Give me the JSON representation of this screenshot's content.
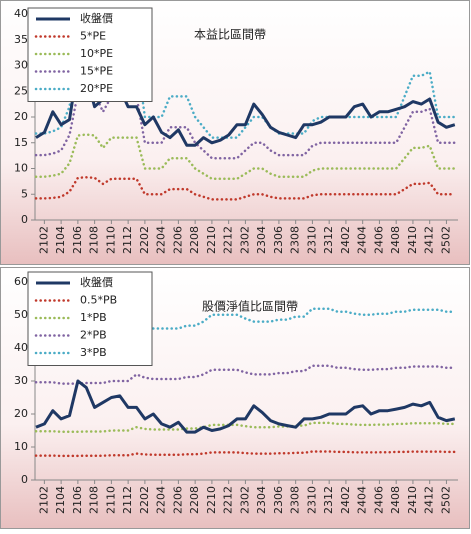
{
  "chart_data": [
    {
      "type": "line",
      "title": "本益比區間帶",
      "categories": [
        null,
        "2102",
        null,
        "2104",
        null,
        "2106",
        null,
        "2108",
        null,
        "2110",
        null,
        "2112",
        null,
        "2202",
        null,
        "2204",
        null,
        "2206",
        null,
        "2208",
        null,
        "2210",
        null,
        "2212",
        null,
        "2302",
        null,
        "2304",
        null,
        "2306",
        null,
        "2308",
        null,
        "2310",
        null,
        "2312",
        null,
        "2402",
        null,
        "2404",
        null,
        "2406",
        null,
        "2408",
        null,
        "2410",
        null,
        "2412",
        null,
        "2502",
        null
      ],
      "series": [
        {
          "name": "收盤價",
          "color": "#1f3864",
          "values": [
            16,
            17,
            21,
            18.5,
            19.5,
            30,
            28,
            22,
            23.5,
            25,
            25.5,
            22,
            22,
            18.5,
            20,
            17,
            16,
            17.5,
            14.5,
            14.5,
            16,
            15,
            15.5,
            16.5,
            18.5,
            18.5,
            22.5,
            20.5,
            18,
            17,
            16.5,
            16,
            18.5,
            18.5,
            19,
            20,
            20,
            20,
            22,
            22.5,
            20,
            21,
            21,
            21.5,
            22,
            23,
            22.5,
            23.5,
            19,
            18,
            18.5
          ]
        },
        {
          "name": "5*PE",
          "color": "#c0392b",
          "values": [
            4.2,
            4.2,
            4.3,
            4.5,
            5.5,
            8.2,
            8.3,
            8.2,
            7,
            8,
            8,
            8,
            8,
            5,
            5,
            5,
            6,
            6,
            6,
            5,
            4.5,
            4,
            4,
            4,
            4,
            4.5,
            5,
            5,
            4.5,
            4.2,
            4.2,
            4.2,
            4.2,
            4.8,
            5,
            5,
            5,
            5,
            5,
            5,
            5,
            5,
            5,
            5,
            6,
            7,
            7,
            7.2,
            5,
            5,
            5
          ]
        },
        {
          "name": "10*PE",
          "color": "#9bbb59",
          "values": [
            8.4,
            8.4,
            8.6,
            9,
            11,
            16.4,
            16.6,
            16.4,
            14,
            16,
            16,
            16,
            16,
            10,
            10,
            10,
            12,
            12,
            12,
            10,
            9,
            8,
            8,
            8,
            8,
            9,
            10,
            10,
            9,
            8.4,
            8.4,
            8.4,
            8.4,
            9.6,
            10,
            10,
            10,
            10,
            10,
            10,
            10,
            10,
            10,
            10,
            12,
            14,
            14,
            14.4,
            10,
            10,
            10
          ]
        },
        {
          "name": "15*PE",
          "color": "#8064a2",
          "values": [
            12.6,
            12.6,
            12.9,
            13.5,
            16.5,
            24.6,
            24.9,
            24.6,
            21,
            24,
            24,
            24,
            24,
            15,
            15,
            15,
            18,
            18,
            18,
            15,
            13.5,
            12,
            12,
            12,
            12,
            13.5,
            15,
            15,
            13.5,
            12.6,
            12.6,
            12.6,
            12.6,
            14.4,
            15,
            15,
            15,
            15,
            15,
            15,
            15,
            15,
            15,
            15,
            18,
            21,
            21,
            21.6,
            15,
            15,
            15
          ]
        },
        {
          "name": "20*PE",
          "color": "#4bacc6",
          "values": [
            16.8,
            16.8,
            17.2,
            18,
            22,
            32.8,
            33.2,
            32.8,
            28,
            32,
            32,
            32,
            32,
            20,
            20,
            20,
            24,
            24,
            24,
            20,
            18,
            16,
            16,
            16,
            16,
            18,
            20,
            20,
            18,
            16.8,
            16.8,
            16.8,
            16.8,
            19.2,
            20,
            20,
            20,
            20,
            20,
            20,
            20,
            20,
            20,
            20,
            24,
            28,
            28,
            28.8,
            20,
            20,
            20
          ]
        }
      ],
      "ylim": [
        0,
        40
      ],
      "yticks": [
        0,
        5,
        10,
        15,
        20,
        25,
        30,
        35,
        40
      ]
    },
    {
      "type": "line",
      "title": "股價淨值比區間帶",
      "categories": [
        null,
        "2102",
        null,
        "2104",
        null,
        "2106",
        null,
        "2108",
        null,
        "2110",
        null,
        "2112",
        null,
        "2202",
        null,
        "2204",
        null,
        "2206",
        null,
        "2208",
        null,
        "2210",
        null,
        "2212",
        null,
        "2302",
        null,
        "2304",
        null,
        "2306",
        null,
        "2308",
        null,
        "2310",
        null,
        "2312",
        null,
        "2402",
        null,
        "2404",
        null,
        "2406",
        null,
        "2408",
        null,
        "2410",
        null,
        "2412",
        null,
        "2502",
        null
      ],
      "series": [
        {
          "name": "收盤價",
          "color": "#1f3864",
          "values": [
            16,
            17,
            21,
            18.5,
            19.5,
            30,
            28,
            22,
            23.5,
            25,
            25.5,
            22,
            22,
            18.5,
            20,
            17,
            16,
            17.5,
            14.5,
            14.5,
            16,
            15,
            15.5,
            16.5,
            18.5,
            18.5,
            22.5,
            20.5,
            18,
            17,
            16.5,
            16,
            18.5,
            18.5,
            19,
            20,
            20,
            20,
            22,
            22.5,
            20,
            21,
            21,
            21.5,
            22,
            23,
            22.5,
            23.5,
            19,
            18,
            18.5
          ]
        },
        {
          "name": "0.5*PB",
          "color": "#c0392b",
          "values": [
            7.4,
            7.4,
            7.4,
            7.3,
            7.3,
            7.3,
            7.35,
            7.35,
            7.35,
            7.5,
            7.5,
            7.5,
            8,
            7.75,
            7.65,
            7.65,
            7.65,
            7.65,
            7.8,
            7.8,
            8,
            8.35,
            8.35,
            8.35,
            8.35,
            8.15,
            8,
            8,
            8,
            8.1,
            8.1,
            8.25,
            8.25,
            8.65,
            8.65,
            8.65,
            8.5,
            8.5,
            8.4,
            8.35,
            8.35,
            8.4,
            8.4,
            8.5,
            8.5,
            8.6,
            8.6,
            8.6,
            8.6,
            8.5,
            8.5
          ]
        },
        {
          "name": "1*PB",
          "color": "#9bbb59",
          "values": [
            14.8,
            14.8,
            14.8,
            14.6,
            14.6,
            14.6,
            14.7,
            14.7,
            14.7,
            15,
            15,
            15,
            16,
            15.5,
            15.3,
            15.3,
            15.3,
            15.3,
            15.6,
            15.6,
            16,
            16.7,
            16.7,
            16.7,
            16.7,
            16.3,
            16,
            16,
            16,
            16.2,
            16.2,
            16.5,
            16.5,
            17.3,
            17.3,
            17.3,
            17,
            17,
            16.8,
            16.7,
            16.7,
            16.8,
            16.8,
            17,
            17,
            17.2,
            17.2,
            17.2,
            17.2,
            17,
            17
          ]
        },
        {
          "name": "2*PB",
          "color": "#8064a2",
          "values": [
            29.6,
            29.6,
            29.6,
            29.2,
            29.2,
            29.2,
            29.4,
            29.4,
            29.4,
            30,
            30,
            30,
            32,
            31,
            30.6,
            30.6,
            30.6,
            30.6,
            31.2,
            31.2,
            32,
            33.4,
            33.4,
            33.4,
            33.4,
            32.6,
            32,
            32,
            32,
            32.4,
            32.4,
            33,
            33,
            34.6,
            34.6,
            34.6,
            34,
            34,
            33.6,
            33.4,
            33.4,
            33.6,
            33.6,
            34,
            34,
            34.4,
            34.4,
            34.4,
            34.4,
            34,
            34
          ]
        },
        {
          "name": "3*PB",
          "color": "#4bacc6",
          "values": [
            44.4,
            44.4,
            44.4,
            43.8,
            43.8,
            43.8,
            44.1,
            44.1,
            44.1,
            45,
            45,
            45,
            48,
            46.5,
            45.9,
            45.9,
            45.9,
            45.9,
            46.8,
            46.8,
            48,
            50.1,
            50.1,
            50.1,
            50.1,
            48.9,
            48,
            48,
            48,
            48.6,
            48.6,
            49.5,
            49.5,
            51.9,
            51.9,
            51.9,
            51,
            51,
            50.4,
            50.1,
            50.1,
            50.4,
            50.4,
            51,
            51,
            51.6,
            51.6,
            51.6,
            51.6,
            51,
            51
          ]
        }
      ],
      "ylim": [
        0,
        60
      ],
      "yticks": [
        0,
        10,
        20,
        30,
        40,
        50,
        60
      ]
    }
  ]
}
